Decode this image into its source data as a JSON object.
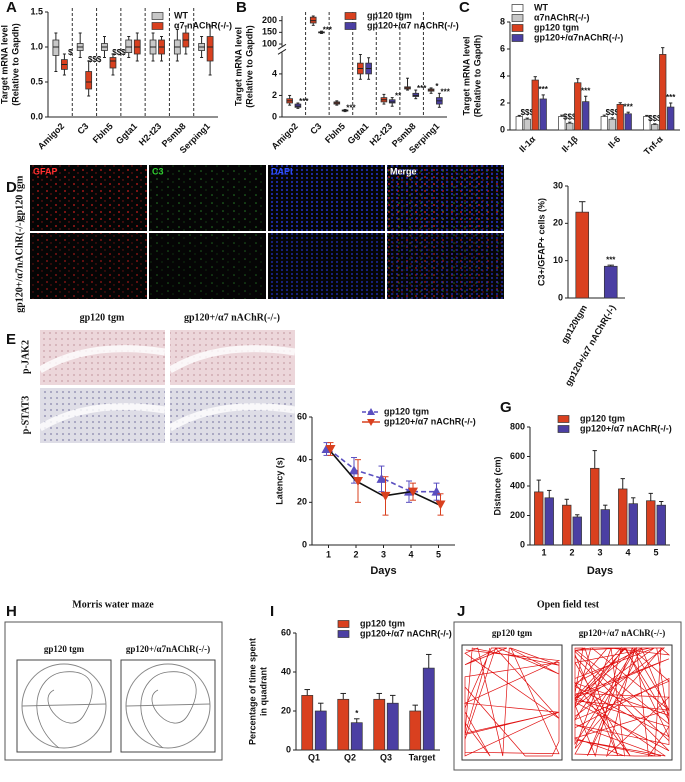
{
  "chart_data": [
    {
      "panel": "A",
      "type": "box",
      "ylabel": [
        "Target mRNA level",
        "(Relative to Gapdh)"
      ],
      "categories": [
        "Amigo2",
        "C3",
        "Fbln5",
        "Ggta1",
        "H2-t23",
        "Psmb8",
        "Serping1"
      ],
      "ylim": [
        0,
        1.5
      ],
      "yticks": [
        {
          "value": 0,
          "label": "0.0"
        },
        {
          "value": 0.5,
          "label": "0.5"
        },
        {
          "value": 1,
          "label": "1.0"
        },
        {
          "value": 1.5,
          "label": "1.5"
        }
      ],
      "series": [
        {
          "name": "WT",
          "color": "#c8c8c8",
          "values": [
            {
              "min": 0.65,
              "q1": 0.88,
              "median": 1.0,
              "q3": 1.1,
              "max": 1.2
            },
            {
              "min": 0.85,
              "q1": 0.95,
              "median": 1.0,
              "q3": 1.05,
              "max": 1.2
            },
            {
              "min": 0.85,
              "q1": 0.95,
              "median": 1.0,
              "q3": 1.05,
              "max": 1.15
            },
            {
              "min": 0.85,
              "q1": 0.92,
              "median": 1.0,
              "q3": 1.1,
              "max": 1.15
            },
            {
              "min": 0.8,
              "q1": 0.9,
              "median": 1.0,
              "q3": 1.1,
              "max": 1.2
            },
            {
              "min": 0.8,
              "q1": 0.9,
              "median": 1.0,
              "q3": 1.1,
              "max": 1.25
            },
            {
              "min": 0.85,
              "q1": 0.95,
              "median": 1.0,
              "q3": 1.05,
              "max": 1.15
            }
          ]
        },
        {
          "name": "α7 nAChR(-/-)",
          "color": "#d9401f",
          "sig": [
            "$",
            "$$$",
            "$$$",
            null,
            null,
            null,
            null
          ],
          "values": [
            {
              "min": 0.6,
              "q1": 0.68,
              "median": 0.75,
              "q3": 0.82,
              "max": 0.9
            },
            {
              "min": 0.3,
              "q1": 0.4,
              "median": 0.5,
              "q3": 0.65,
              "max": 0.8
            },
            {
              "min": 0.6,
              "q1": 0.7,
              "median": 0.8,
              "q3": 0.85,
              "max": 0.9
            },
            {
              "min": 0.8,
              "q1": 0.9,
              "median": 1.0,
              "q3": 1.1,
              "max": 1.2
            },
            {
              "min": 0.8,
              "q1": 0.9,
              "median": 1.0,
              "q3": 1.1,
              "max": 1.15
            },
            {
              "min": 0.9,
              "q1": 1.0,
              "median": 1.1,
              "q3": 1.2,
              "max": 1.3
            },
            {
              "min": 0.6,
              "q1": 0.8,
              "median": 1.0,
              "q3": 1.15,
              "max": 1.3
            }
          ]
        }
      ]
    },
    {
      "panel": "B",
      "type": "box",
      "ylabel": [
        "Target mRNA level",
        "(Relative to Gapdh)"
      ],
      "categories": [
        "Amigo2",
        "C3",
        "Fbln5",
        "Ggta1",
        "H2-t23",
        "Psmb8",
        "Serping1"
      ],
      "ylim": [
        0,
        6
      ],
      "yticks": [
        0,
        2,
        4
      ],
      "upper_ylim": [
        90,
        220
      ],
      "upper_yticks": [
        100,
        150,
        200
      ],
      "series": [
        {
          "name": "gp120 tgm",
          "color": "#d9401f",
          "sig": [
            null,
            null,
            null,
            null,
            null,
            null,
            "*"
          ],
          "values": [
            {
              "min": 1.1,
              "q1": 1.3,
              "median": 1.5,
              "q3": 1.7,
              "max": 2.0
            },
            {
              "min": 180,
              "q1": 190,
              "median": 200,
              "q3": 215,
              "max": 220
            },
            {
              "min": 1.1,
              "q1": 1.2,
              "median": 1.3,
              "q3": 1.4,
              "max": 1.5
            },
            {
              "min": 3.5,
              "q1": 4.0,
              "median": 4.5,
              "q3": 5.0,
              "max": 5.8
            },
            {
              "min": 1.2,
              "q1": 1.4,
              "median": 1.6,
              "q3": 1.8,
              "max": 2.1
            },
            {
              "min": 2.5,
              "q1": 2.6,
              "median": 2.7,
              "q3": 2.8,
              "max": 3.6
            },
            {
              "min": 2.2,
              "q1": 2.4,
              "median": 2.5,
              "q3": 2.6,
              "max": 2.7
            }
          ]
        },
        {
          "name": "gp120+/α7 nAChR(-/-)",
          "color": "#4b3fa3",
          "sig": [
            "***",
            "***",
            "***",
            null,
            "**",
            "***",
            "***"
          ],
          "values": [
            {
              "min": 0.8,
              "q1": 0.9,
              "median": 1.0,
              "q3": 1.2,
              "max": 1.3
            },
            {
              "min": 145,
              "q1": 148,
              "median": 150,
              "q3": 152,
              "max": 155
            },
            {
              "min": 0.5,
              "q1": 0.55,
              "median": 0.6,
              "q3": 0.65,
              "max": 0.7
            },
            {
              "min": 3.5,
              "q1": 4.0,
              "median": 4.5,
              "q3": 5.0,
              "max": 5.5
            },
            {
              "min": 1.0,
              "q1": 1.3,
              "median": 1.4,
              "q3": 1.6,
              "max": 1.8
            },
            {
              "min": 1.7,
              "q1": 1.9,
              "median": 2.0,
              "q3": 2.2,
              "max": 2.5
            },
            {
              "min": 0.9,
              "q1": 1.2,
              "median": 1.5,
              "q3": 1.8,
              "max": 2.2
            }
          ]
        }
      ]
    },
    {
      "panel": "C",
      "type": "bar",
      "ylabel": [
        "Target mRNA level",
        "(Relative to Gapdh)"
      ],
      "categories": [
        "Il-1α",
        "Il-1β",
        "Il-6",
        "Tnf-α"
      ],
      "ylim": [
        0,
        8
      ],
      "yticks": [
        0,
        2,
        4,
        6,
        8
      ],
      "series": [
        {
          "name": "WT",
          "color": "#ffffff",
          "values": [
            1.0,
            1.0,
            1.0,
            1.0
          ],
          "errors": [
            0.08,
            0.1,
            0.1,
            0.08
          ]
        },
        {
          "name": "α7nAChR(-/-)",
          "color": "#c8c8c8",
          "values": [
            0.8,
            0.5,
            0.8,
            0.4
          ],
          "errors": [
            0.08,
            0.08,
            0.1,
            0.06
          ],
          "sig": [
            "$$$",
            "$$$",
            "$$$",
            "$$$"
          ]
        },
        {
          "name": "gp120 tgm",
          "color": "#d9401f",
          "values": [
            3.7,
            3.5,
            1.9,
            5.6
          ],
          "errors": [
            0.25,
            0.3,
            0.12,
            0.5
          ]
        },
        {
          "name": "gp120+/α7nAChR(-/-)",
          "color": "#4b3fa3",
          "values": [
            2.3,
            2.1,
            1.2,
            1.7
          ],
          "errors": [
            0.3,
            0.4,
            0.12,
            0.3
          ],
          "sig": [
            "***",
            "***",
            "***",
            "***"
          ]
        }
      ]
    },
    {
      "type": "bar",
      "ylabel": "C3+/GFAP+ cells (%)",
      "categories": [
        "gp120tgm",
        "gp120+/α7 nAChR(-/-)"
      ],
      "ylim": [
        0,
        30
      ],
      "yticks": [
        0,
        10,
        20,
        30
      ],
      "values": [
        23,
        8.5
      ],
      "errors": [
        2.8,
        0.3
      ],
      "colors": [
        "#d9401f",
        "#4b3fa3"
      ],
      "sig": [
        null,
        "***"
      ]
    },
    {
      "panel": "F",
      "type": "line",
      "ylabel": "Latency (s)",
      "xlabel": "Days",
      "x": [
        1,
        2,
        3,
        4,
        5
      ],
      "xlim": [
        0.4,
        5.6
      ],
      "xticks": [
        1,
        2,
        3,
        4,
        5
      ],
      "ylim": [
        0,
        60
      ],
      "yticks": [
        0,
        20,
        40,
        60
      ],
      "series": [
        {
          "name": "gp120 tgm",
          "color": "#5a4fc0",
          "dashed": true,
          "marker": "triangle",
          "values": [
            45,
            35,
            31,
            25,
            25
          ],
          "errors": [
            3,
            6,
            6,
            5,
            4
          ]
        },
        {
          "name": "gp120+/α7 nAChR(-/-)",
          "color": "#d9401f",
          "dashed": false,
          "marker": "triangle-down",
          "values": [
            45,
            30,
            23,
            25,
            19
          ],
          "errors": [
            3,
            10,
            9,
            4,
            5
          ]
        }
      ]
    },
    {
      "panel": "G",
      "type": "bar",
      "ylabel": "Distance (cm)",
      "xlabel": "Days",
      "categories": [
        "1",
        "2",
        "3",
        "4",
        "5"
      ],
      "ylim": [
        0,
        800
      ],
      "yticks": [
        0,
        200,
        400,
        600,
        800
      ],
      "series": [
        {
          "name": "gp120 tgm",
          "color": "#d9401f",
          "values": [
            360,
            270,
            520,
            380,
            300
          ],
          "errors": [
            80,
            40,
            120,
            70,
            50
          ]
        },
        {
          "name": "gp120+/α7 nAChR(-/-)",
          "color": "#4b3fa3",
          "values": [
            320,
            190,
            240,
            280,
            270
          ],
          "errors": [
            50,
            15,
            30,
            40,
            25
          ]
        }
      ]
    },
    {
      "panel": "I",
      "type": "bar",
      "ylabel": [
        "Percentage of time spent",
        "in quadrant"
      ],
      "categories": [
        "Q1",
        "Q2",
        "Q3",
        "Target"
      ],
      "ylim": [
        0,
        60
      ],
      "yticks": [
        0,
        20,
        40,
        60
      ],
      "series": [
        {
          "name": "gp120 tgm",
          "color": "#d9401f",
          "values": [
            28,
            26,
            26,
            20
          ],
          "errors": [
            3,
            3,
            3,
            3
          ]
        },
        {
          "name": "gp120+/α7 nAChR(-/-)",
          "color": "#4b3fa3",
          "values": [
            20,
            14,
            24,
            42
          ],
          "errors": [
            4,
            2,
            4,
            7
          ],
          "sig": [
            null,
            "*",
            null,
            null
          ]
        }
      ]
    }
  ],
  "figures": {
    "D": {
      "panel": "D",
      "channels": [
        "GFAP",
        "C3",
        "DAPI",
        "Merge"
      ],
      "rows": [
        "gp120 tgm",
        "gp120+/α7nAChR(-/-)"
      ]
    },
    "E": {
      "panel": "E",
      "columns": [
        "gp120 tgm",
        "gp120+/α7 nAChR(-/-)"
      ],
      "rows": [
        "p-JAK2",
        "p-STAT3"
      ]
    },
    "H": {
      "panel": "H",
      "title": "Morris water maze",
      "columns": [
        "gp120 tgm",
        "gp120+/α7nAChR(-/-)"
      ]
    },
    "J": {
      "panel": "J",
      "title": "Open field test",
      "columns": [
        "gp120 tgm",
        "gp120+/α7 nAChR(-/-)"
      ]
    }
  }
}
